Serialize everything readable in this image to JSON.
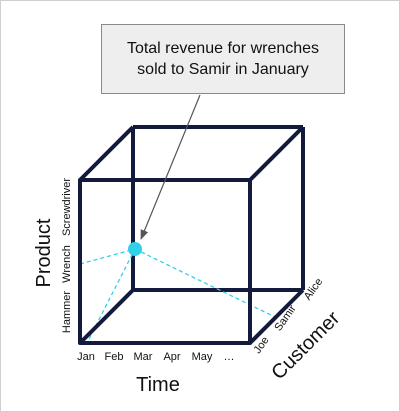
{
  "callout": {
    "line1": "Total revenue for wrenches",
    "line2": "sold to Samir in January"
  },
  "axes": {
    "time": {
      "title": "Time",
      "ticks": [
        "Jan",
        "Feb",
        "Mar",
        "Apr",
        "May",
        "…"
      ]
    },
    "product": {
      "title": "Product",
      "ticks": [
        "Hammer",
        "Wrench",
        "Screwdriver"
      ]
    },
    "customer": {
      "title": "Customer",
      "ticks": [
        "Joe",
        "Samir",
        "Alice"
      ]
    }
  },
  "highlighted_cell": {
    "time": "Jan",
    "product": "Wrench",
    "customer": "Samir"
  },
  "colors": {
    "cube_edges": "#141a3c",
    "highlight": "#33d0ea",
    "pointer_arrow": "#555555"
  }
}
